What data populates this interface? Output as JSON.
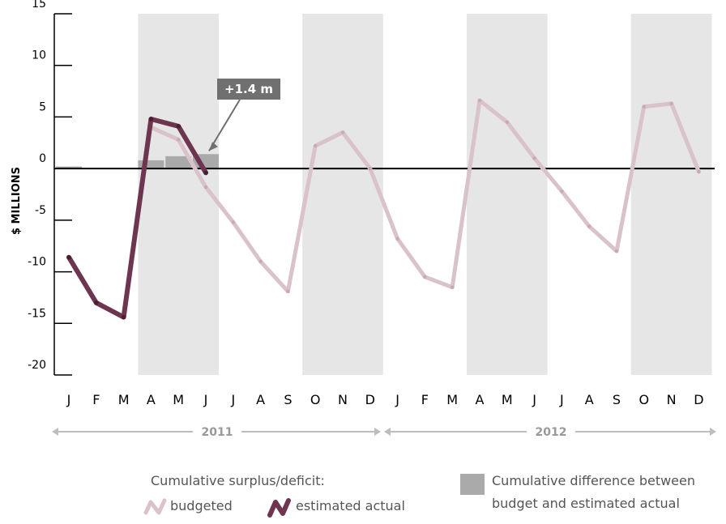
{
  "chart_data": {
    "type": "line",
    "title": "",
    "ylabel": "$ MILLIONS",
    "ylim": [
      -20,
      15
    ],
    "yticks": [
      15,
      10,
      5,
      0,
      -5,
      -10,
      -15,
      -20
    ],
    "xtick_labels": [
      "J",
      "F",
      "M",
      "A",
      "M",
      "J",
      "J",
      "A",
      "S",
      "O",
      "N",
      "D",
      "J",
      "F",
      "M",
      "A",
      "M",
      "J",
      "J",
      "A",
      "S",
      "O",
      "N",
      "D"
    ],
    "year_labels": [
      "2011",
      "2012"
    ],
    "shaded_quarters": [
      [
        4,
        6
      ],
      [
        10,
        12
      ],
      [
        16,
        18
      ],
      [
        22,
        24
      ]
    ],
    "series": [
      {
        "name": "budgeted",
        "color": "#d9c2ca",
        "month_index": [
          4,
          5,
          6,
          7,
          8,
          9,
          10,
          11,
          12,
          13,
          14,
          15,
          16,
          17,
          18,
          19,
          20,
          21,
          22,
          23,
          24
        ],
        "values": [
          4.0,
          2.8,
          -1.8,
          -5.2,
          -9.0,
          -11.9,
          2.2,
          3.5,
          0.0,
          -6.8,
          -10.5,
          -11.5,
          6.6,
          4.5,
          1.0,
          -2.2,
          -5.6,
          -8.0,
          6.0,
          6.3,
          -0.3
        ]
      },
      {
        "name": "estimated actual",
        "color": "#6e3550",
        "month_index": [
          1,
          2,
          3,
          4,
          5,
          6
        ],
        "values": [
          -8.6,
          -13.0,
          -14.4,
          4.8,
          4.1,
          -0.4
        ]
      }
    ],
    "difference_bars": {
      "name": "Cumulative difference between budget and estimated actual",
      "color": "#aaaaaa",
      "month_index": [
        1,
        4,
        5,
        6
      ],
      "values": [
        0.2,
        0.8,
        1.2,
        1.4
      ]
    },
    "annotation": {
      "text": "+1.4 m",
      "month_index": 6,
      "value": 1.4
    },
    "legend": {
      "heading": "Cumulative surplus/deficit:",
      "budgeted_label": "budgeted",
      "actual_label": "estimated actual",
      "diff_line1": "Cumulative difference between",
      "diff_line2": "budget and estimated actual",
      "position": "bottom"
    },
    "grid": false
  },
  "colors": {
    "shade": "#e6e6e6",
    "axis": "#000000",
    "year_arrow": "#bdbdbd",
    "annotation_box": "#707070",
    "annotation_text": "#ffffff"
  }
}
